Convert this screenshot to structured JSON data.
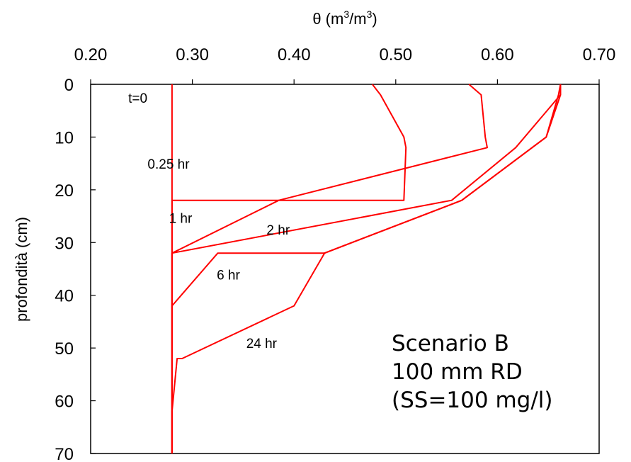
{
  "chart_data": {
    "type": "line",
    "xlabel_main": "θ (m",
    "xlabel_exp1": "3",
    "xlabel_mid": "/m",
    "xlabel_exp2": "3",
    "xlabel_end": ")",
    "ylabel": "profondità (cm)",
    "xlim": [
      0.2,
      0.7
    ],
    "ylim": [
      0,
      70
    ],
    "y_inverted": true,
    "x_axis_position": "top",
    "xticks": [
      "0.20",
      "0.30",
      "0.40",
      "0.50",
      "0.60",
      "0.70"
    ],
    "xtick_values": [
      0.2,
      0.3,
      0.4,
      0.5,
      0.6,
      0.7
    ],
    "yticks": [
      "0",
      "10",
      "20",
      "30",
      "40",
      "50",
      "60",
      "70"
    ],
    "ytick_values": [
      0,
      10,
      20,
      30,
      40,
      50,
      60,
      70
    ],
    "grid": false,
    "line_color": "#ff0000",
    "annotation": [
      "Scenario B",
      "100 mm RD",
      "(SS=100 mg/l)"
    ],
    "series": [
      {
        "name": "t=0",
        "x": [
          0.28,
          0.28
        ],
        "y": [
          0,
          70
        ]
      },
      {
        "name": "0.25 hr",
        "x": [
          0.477,
          0.485,
          0.508,
          0.51,
          0.508,
          0.28,
          0.28
        ],
        "y": [
          0,
          2,
          10,
          12,
          22,
          22,
          70
        ]
      },
      {
        "name": "1 hr",
        "x": [
          0.572,
          0.584,
          0.588,
          0.59,
          0.385,
          0.28,
          0.28
        ],
        "y": [
          0,
          2,
          10,
          12,
          22,
          32,
          70
        ]
      },
      {
        "name": "2 hr",
        "x": [
          0.662,
          0.662,
          0.618,
          0.555,
          0.28,
          0.28
        ],
        "y": [
          0,
          2,
          12,
          22,
          32,
          70
        ]
      },
      {
        "name": "6 hr",
        "x": [
          0.662,
          0.66,
          0.648,
          0.565,
          0.43,
          0.325,
          0.28,
          0.28
        ],
        "y": [
          0,
          2,
          10,
          22,
          32,
          32,
          42,
          70
        ]
      },
      {
        "name": "24 hr",
        "x": [
          0.662,
          0.662,
          0.648,
          0.565,
          0.43,
          0.4,
          0.29,
          0.285,
          0.28,
          0.28
        ],
        "y": [
          0,
          2,
          10,
          22,
          32,
          42,
          52,
          52,
          62,
          70
        ]
      }
    ],
    "curve_labels": [
      {
        "text": "t=0",
        "x": 0.237,
        "y": 3.5
      },
      {
        "text": "0.25 hr",
        "x": 0.256,
        "y": 16.0
      },
      {
        "text": "1 hr",
        "x": 0.277,
        "y": 26.3
      },
      {
        "text": "2 hr",
        "x": 0.373,
        "y": 28.5
      },
      {
        "text": "6 hr",
        "x": 0.324,
        "y": 37.0
      },
      {
        "text": "24 hr",
        "x": 0.353,
        "y": 50.0
      }
    ]
  }
}
